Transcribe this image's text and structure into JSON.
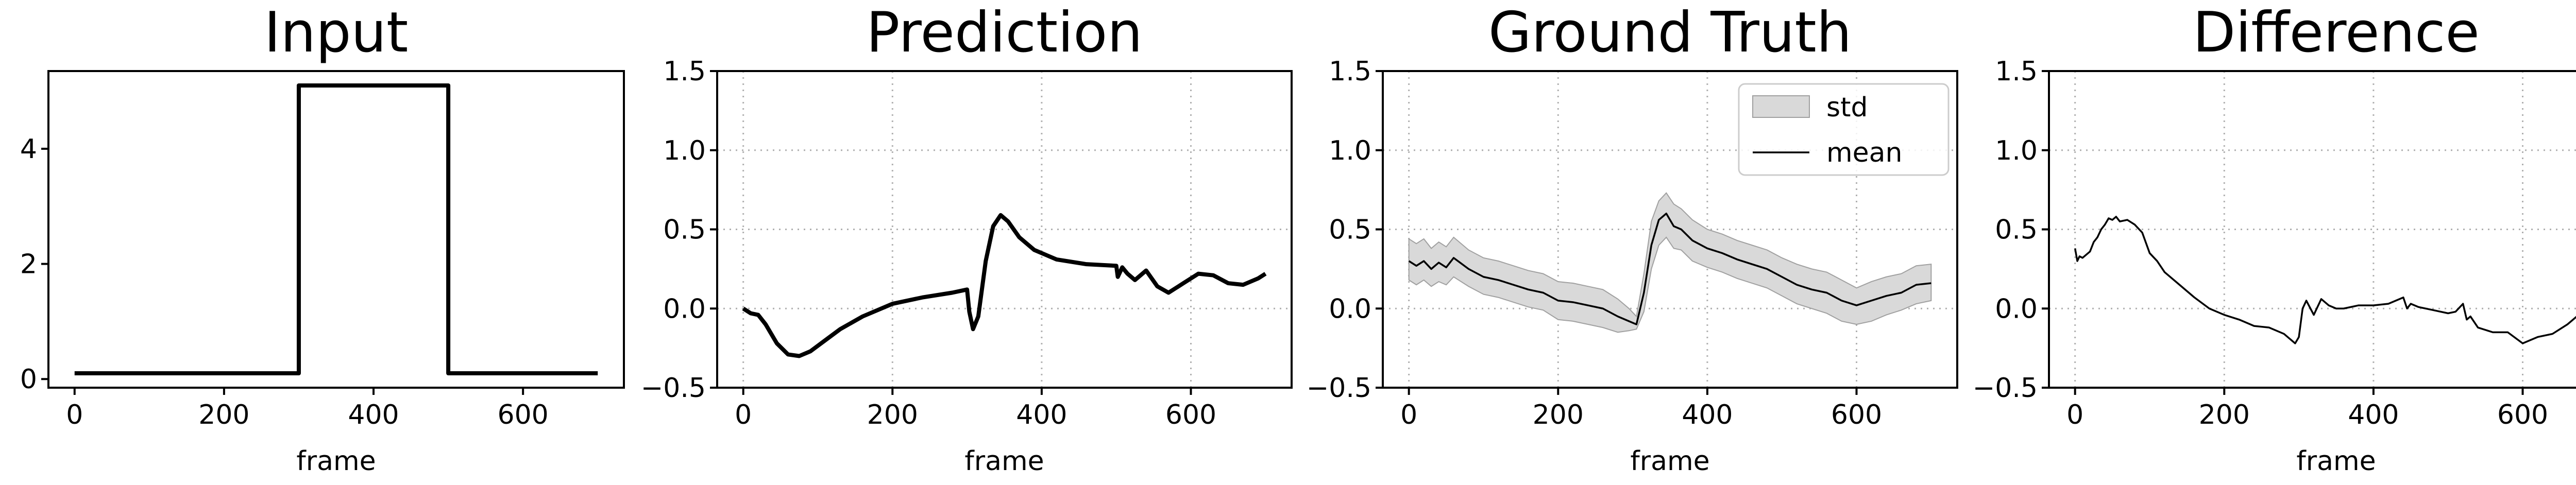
{
  "chart_data": [
    {
      "type": "line",
      "title": "Input",
      "xlabel": "frame",
      "ylabel": "",
      "xlim": [
        -35,
        735
      ],
      "ylim": [
        -0.15,
        5.35
      ],
      "xticks": [
        0,
        200,
        400,
        600
      ],
      "yticks": [
        0,
        2,
        4
      ],
      "ytick_labels": [
        "0",
        "2",
        "4"
      ],
      "grid": false,
      "series": [
        {
          "x": [
            0,
            300,
            300,
            500,
            500,
            700
          ],
          "y": [
            0.1,
            0.1,
            5.1,
            5.1,
            0.1,
            0.1
          ],
          "color": "#000000",
          "style": "thick"
        }
      ]
    },
    {
      "type": "line",
      "title": "Prediction",
      "xlabel": "frame",
      "ylabel": "",
      "xlim": [
        -35,
        735
      ],
      "ylim": [
        -0.5,
        1.5
      ],
      "xticks": [
        0,
        200,
        400,
        600
      ],
      "yticks": [
        -0.5,
        0.0,
        0.5,
        1.0,
        1.5
      ],
      "ytick_labels": [
        "−0.5",
        "0.0",
        "0.5",
        "1.0",
        "1.5"
      ],
      "grid": true,
      "series": [
        {
          "x": [
            0,
            10,
            20,
            30,
            45,
            60,
            75,
            90,
            110,
            130,
            160,
            200,
            240,
            280,
            300,
            303,
            308,
            315,
            325,
            335,
            345,
            355,
            370,
            390,
            420,
            460,
            500,
            502,
            508,
            515,
            525,
            540,
            555,
            570,
            590,
            610,
            630,
            650,
            670,
            690,
            700
          ],
          "y": [
            0.0,
            -0.03,
            -0.04,
            -0.1,
            -0.22,
            -0.29,
            -0.3,
            -0.27,
            -0.2,
            -0.13,
            -0.05,
            0.03,
            0.07,
            0.1,
            0.12,
            -0.02,
            -0.13,
            -0.05,
            0.3,
            0.52,
            0.59,
            0.55,
            0.45,
            0.37,
            0.31,
            0.28,
            0.27,
            0.2,
            0.26,
            0.22,
            0.18,
            0.24,
            0.14,
            0.1,
            0.16,
            0.22,
            0.21,
            0.16,
            0.15,
            0.19,
            0.22
          ],
          "color": "#000000",
          "style": "thick"
        }
      ]
    },
    {
      "type": "area",
      "title": "Ground Truth",
      "xlabel": "frame",
      "ylabel": "",
      "xlim": [
        -35,
        735
      ],
      "ylim": [
        -0.5,
        1.5
      ],
      "xticks": [
        0,
        200,
        400,
        600
      ],
      "yticks": [
        -0.5,
        0.0,
        0.5,
        1.0,
        1.5
      ],
      "ytick_labels": [
        "−0.5",
        "0.0",
        "0.5",
        "1.0",
        "1.5"
      ],
      "grid": true,
      "legend": {
        "placement": "top-right",
        "entries": [
          "std",
          "mean"
        ]
      },
      "series": [
        {
          "name": "mean",
          "x": [
            0,
            10,
            20,
            30,
            40,
            50,
            60,
            80,
            100,
            120,
            140,
            160,
            180,
            200,
            220,
            240,
            260,
            280,
            295,
            305,
            315,
            325,
            335,
            345,
            355,
            365,
            380,
            400,
            420,
            440,
            460,
            480,
            500,
            520,
            540,
            560,
            580,
            600,
            620,
            640,
            660,
            680,
            700
          ],
          "y": [
            0.3,
            0.27,
            0.3,
            0.25,
            0.29,
            0.26,
            0.32,
            0.25,
            0.2,
            0.18,
            0.15,
            0.12,
            0.1,
            0.05,
            0.04,
            0.02,
            0.0,
            -0.05,
            -0.08,
            -0.1,
            0.1,
            0.4,
            0.56,
            0.6,
            0.52,
            0.5,
            0.43,
            0.38,
            0.35,
            0.31,
            0.28,
            0.25,
            0.2,
            0.15,
            0.12,
            0.1,
            0.05,
            0.02,
            0.05,
            0.08,
            0.1,
            0.15,
            0.16
          ],
          "color": "#000000",
          "style": "thin"
        },
        {
          "name": "std",
          "x": [
            0,
            10,
            20,
            30,
            40,
            50,
            60,
            80,
            100,
            120,
            140,
            160,
            180,
            200,
            220,
            240,
            260,
            280,
            295,
            305,
            315,
            325,
            335,
            345,
            355,
            365,
            380,
            400,
            420,
            440,
            460,
            480,
            500,
            520,
            540,
            560,
            580,
            600,
            620,
            640,
            660,
            680,
            700
          ],
          "lower": [
            0.18,
            0.15,
            0.18,
            0.14,
            0.17,
            0.15,
            0.2,
            0.14,
            0.09,
            0.07,
            0.04,
            0.01,
            -0.01,
            -0.07,
            -0.08,
            -0.1,
            -0.12,
            -0.15,
            -0.14,
            -0.13,
            -0.02,
            0.25,
            0.4,
            0.45,
            0.38,
            0.37,
            0.3,
            0.26,
            0.23,
            0.19,
            0.16,
            0.13,
            0.08,
            0.03,
            0.0,
            -0.03,
            -0.08,
            -0.1,
            -0.08,
            -0.04,
            -0.01,
            0.03,
            0.05
          ],
          "upper": [
            0.44,
            0.41,
            0.44,
            0.38,
            0.42,
            0.39,
            0.45,
            0.37,
            0.32,
            0.3,
            0.27,
            0.24,
            0.22,
            0.17,
            0.16,
            0.14,
            0.12,
            0.06,
            0.0,
            -0.05,
            0.22,
            0.55,
            0.68,
            0.73,
            0.66,
            0.63,
            0.56,
            0.5,
            0.47,
            0.43,
            0.4,
            0.37,
            0.32,
            0.28,
            0.25,
            0.23,
            0.18,
            0.13,
            0.17,
            0.2,
            0.22,
            0.27,
            0.28
          ],
          "color": "#d9d9d9",
          "edge": "#a0a0a0"
        }
      ]
    },
    {
      "type": "line",
      "title": "Difference",
      "xlabel": "frame",
      "ylabel": "",
      "xlim": [
        -35,
        735
      ],
      "ylim": [
        -0.5,
        1.5
      ],
      "xticks": [
        0,
        200,
        400,
        600
      ],
      "yticks": [
        -0.5,
        0.0,
        0.5,
        1.0,
        1.5
      ],
      "ytick_labels": [
        "−0.5",
        "0.0",
        "0.5",
        "1.0",
        "1.5"
      ],
      "grid": true,
      "series": [
        {
          "x": [
            0,
            3,
            6,
            10,
            15,
            20,
            25,
            30,
            35,
            40,
            45,
            50,
            55,
            60,
            70,
            80,
            90,
            100,
            110,
            120,
            140,
            160,
            180,
            200,
            220,
            240,
            260,
            280,
            290,
            295,
            300,
            305,
            310,
            320,
            330,
            340,
            350,
            360,
            380,
            400,
            420,
            430,
            440,
            445,
            450,
            460,
            480,
            500,
            510,
            520,
            525,
            530,
            540,
            560,
            580,
            600,
            620,
            640,
            660,
            680,
            690,
            700
          ],
          "y": [
            0.38,
            0.3,
            0.33,
            0.32,
            0.34,
            0.36,
            0.42,
            0.45,
            0.5,
            0.53,
            0.57,
            0.56,
            0.58,
            0.55,
            0.56,
            0.53,
            0.48,
            0.35,
            0.3,
            0.23,
            0.15,
            0.07,
            0.0,
            -0.04,
            -0.07,
            -0.11,
            -0.12,
            -0.16,
            -0.2,
            -0.22,
            -0.18,
            0.0,
            0.05,
            -0.04,
            0.06,
            0.02,
            0.0,
            0.0,
            0.02,
            0.02,
            0.03,
            0.05,
            0.07,
            0.0,
            0.03,
            0.01,
            -0.01,
            -0.03,
            -0.02,
            0.03,
            -0.07,
            -0.05,
            -0.12,
            -0.15,
            -0.15,
            -0.22,
            -0.18,
            -0.16,
            -0.1,
            -0.02,
            0.0,
            -0.06
          ],
          "color": "#000000",
          "style": "thin"
        }
      ]
    }
  ]
}
